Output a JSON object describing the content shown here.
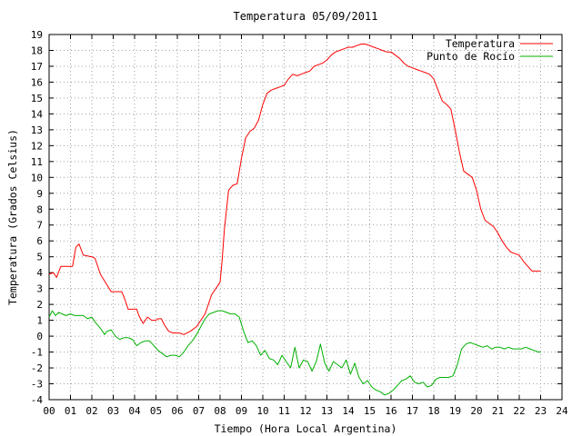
{
  "chart_data": {
    "type": "line",
    "title": "Temperatura 05/09/2011",
    "xlabel": "Tiempo (Hora Local Argentina)",
    "ylabel": "Temperatura (Grados Celsius)",
    "xlim": [
      0,
      24
    ],
    "ylim": [
      -4,
      19
    ],
    "x_ticks": [
      {
        "value": 0,
        "label": "00"
      },
      {
        "value": 1,
        "label": "01"
      },
      {
        "value": 2,
        "label": "02"
      },
      {
        "value": 3,
        "label": "03"
      },
      {
        "value": 4,
        "label": "04"
      },
      {
        "value": 5,
        "label": "05"
      },
      {
        "value": 6,
        "label": "06"
      },
      {
        "value": 7,
        "label": "07"
      },
      {
        "value": 8,
        "label": "08"
      },
      {
        "value": 9,
        "label": "09"
      },
      {
        "value": 10,
        "label": "10"
      },
      {
        "value": 11,
        "label": "11"
      },
      {
        "value": 12,
        "label": "12"
      },
      {
        "value": 13,
        "label": "13"
      },
      {
        "value": 14,
        "label": "14"
      },
      {
        "value": 15,
        "label": "15"
      },
      {
        "value": 16,
        "label": "16"
      },
      {
        "value": 17,
        "label": "17"
      },
      {
        "value": 18,
        "label": "18"
      },
      {
        "value": 19,
        "label": "19"
      },
      {
        "value": 20,
        "label": "20"
      },
      {
        "value": 21,
        "label": "21"
      },
      {
        "value": 22,
        "label": "22"
      },
      {
        "value": 23,
        "label": "23"
      },
      {
        "value": 24,
        "label": "24"
      }
    ],
    "y_ticks": [
      -4,
      -3,
      -2,
      -1,
      0,
      1,
      2,
      3,
      4,
      5,
      6,
      7,
      8,
      9,
      10,
      11,
      12,
      13,
      14,
      15,
      16,
      17,
      18,
      19
    ],
    "grid": true,
    "legend_position": "top-right",
    "series": [
      {
        "name": "Temperatura",
        "color": "#ff0000",
        "x": [
          0.0,
          0.2,
          0.35,
          0.55,
          0.9,
          1.1,
          1.25,
          1.4,
          1.6,
          2.0,
          2.15,
          2.4,
          2.9,
          3.05,
          3.4,
          3.55,
          3.7,
          4.0,
          4.1,
          4.2,
          4.4,
          4.6,
          4.8,
          5.0,
          5.1,
          5.25,
          5.4,
          5.6,
          5.8,
          6.0,
          6.1,
          6.3,
          6.6,
          6.9,
          7.1,
          7.3,
          7.5,
          7.6,
          7.8,
          8.0,
          8.1,
          8.2,
          8.4,
          8.6,
          8.8,
          9.0,
          9.2,
          9.4,
          9.6,
          9.8,
          10.0,
          10.2,
          10.4,
          10.6,
          10.8,
          11.0,
          11.2,
          11.4,
          11.6,
          11.8,
          12.0,
          12.2,
          12.4,
          12.6,
          12.8,
          13.0,
          13.2,
          13.4,
          13.6,
          13.8,
          14.0,
          14.2,
          14.4,
          14.6,
          14.8,
          15.0,
          15.2,
          15.4,
          15.6,
          15.8,
          16.0,
          16.2,
          16.4,
          16.6,
          16.8,
          17.0,
          17.2,
          17.4,
          17.6,
          17.8,
          18.0,
          18.2,
          18.4,
          18.6,
          18.8,
          19.0,
          19.2,
          19.4,
          19.6,
          19.8,
          20.0,
          20.2,
          20.4,
          20.6,
          20.8,
          21.0,
          21.2,
          21.4,
          21.6,
          21.8,
          22.0,
          22.2,
          22.4,
          22.6,
          22.8,
          23.0
        ],
        "y": [
          3.9,
          4.0,
          3.7,
          4.4,
          4.4,
          4.4,
          5.6,
          5.8,
          5.1,
          5.0,
          4.9,
          3.9,
          2.8,
          2.8,
          2.8,
          2.3,
          1.7,
          1.7,
          1.7,
          1.3,
          0.8,
          1.2,
          1.0,
          1.0,
          1.1,
          1.1,
          0.7,
          0.3,
          0.2,
          0.2,
          0.2,
          0.1,
          0.3,
          0.6,
          1.0,
          1.4,
          2.2,
          2.6,
          3.0,
          3.4,
          4.8,
          6.7,
          9.2,
          9.5,
          9.6,
          11.2,
          12.5,
          12.9,
          13.1,
          13.6,
          14.6,
          15.3,
          15.5,
          15.6,
          15.7,
          15.8,
          16.2,
          16.5,
          16.4,
          16.5,
          16.6,
          16.7,
          17.0,
          17.1,
          17.2,
          17.4,
          17.7,
          17.9,
          18.0,
          18.1,
          18.2,
          18.2,
          18.3,
          18.4,
          18.4,
          18.3,
          18.2,
          18.1,
          18.0,
          17.9,
          17.9,
          17.7,
          17.5,
          17.2,
          17.0,
          16.9,
          16.8,
          16.7,
          16.6,
          16.5,
          16.2,
          15.5,
          14.8,
          14.6,
          14.3,
          13.0,
          11.6,
          10.4,
          10.2,
          10.0,
          9.2,
          8.0,
          7.3,
          7.1,
          6.9,
          6.5,
          6.0,
          5.6,
          5.3,
          5.2,
          5.1,
          4.7,
          4.4,
          4.1,
          4.1,
          4.1
        ]
      },
      {
        "name": "Punto de Rocío",
        "color": "#00b000",
        "x": [
          0.0,
          0.15,
          0.3,
          0.45,
          0.6,
          0.8,
          1.0,
          1.2,
          1.4,
          1.6,
          1.8,
          2.0,
          2.2,
          2.4,
          2.6,
          2.7,
          2.9,
          3.1,
          3.3,
          3.5,
          3.7,
          3.9,
          4.1,
          4.3,
          4.5,
          4.7,
          4.9,
          5.1,
          5.3,
          5.5,
          5.7,
          5.9,
          6.1,
          6.3,
          6.5,
          6.7,
          6.9,
          7.1,
          7.3,
          7.5,
          7.7,
          7.9,
          8.1,
          8.3,
          8.5,
          8.7,
          8.9,
          9.1,
          9.3,
          9.5,
          9.7,
          9.9,
          10.1,
          10.3,
          10.5,
          10.7,
          10.9,
          11.1,
          11.3,
          11.5,
          11.7,
          11.9,
          12.1,
          12.3,
          12.5,
          12.7,
          12.9,
          13.1,
          13.3,
          13.5,
          13.7,
          13.9,
          14.1,
          14.3,
          14.5,
          14.7,
          14.9,
          15.1,
          15.3,
          15.5,
          15.7,
          15.9,
          16.1,
          16.3,
          16.5,
          16.7,
          16.9,
          17.1,
          17.3,
          17.5,
          17.7,
          17.9,
          18.1,
          18.3,
          18.5,
          18.7,
          18.9,
          19.1,
          19.3,
          19.5,
          19.7,
          19.9,
          20.1,
          20.3,
          20.5,
          20.7,
          20.9,
          21.1,
          21.3,
          21.5,
          21.7,
          21.9,
          22.1,
          22.3,
          22.5,
          22.7,
          22.9,
          23.0
        ],
        "y": [
          1.2,
          1.6,
          1.3,
          1.5,
          1.4,
          1.3,
          1.4,
          1.3,
          1.3,
          1.3,
          1.1,
          1.2,
          0.8,
          0.5,
          0.1,
          0.3,
          0.4,
          0.0,
          -0.2,
          -0.1,
          -0.1,
          -0.2,
          -0.6,
          -0.4,
          -0.3,
          -0.3,
          -0.6,
          -0.9,
          -1.1,
          -1.3,
          -1.2,
          -1.2,
          -1.3,
          -1.0,
          -0.6,
          -0.3,
          0.1,
          0.6,
          1.1,
          1.4,
          1.5,
          1.6,
          1.6,
          1.5,
          1.4,
          1.4,
          1.2,
          0.3,
          -0.4,
          -0.3,
          -0.6,
          -1.2,
          -0.9,
          -1.4,
          -1.5,
          -1.8,
          -1.2,
          -1.6,
          -2.0,
          -0.7,
          -2.0,
          -1.5,
          -1.6,
          -2.2,
          -1.6,
          -0.5,
          -1.7,
          -2.2,
          -1.6,
          -1.8,
          -2.0,
          -1.5,
          -2.4,
          -1.7,
          -2.6,
          -3.0,
          -2.8,
          -3.2,
          -3.4,
          -3.5,
          -3.7,
          -3.6,
          -3.4,
          -3.1,
          -2.8,
          -2.7,
          -2.5,
          -2.9,
          -3.0,
          -2.9,
          -3.2,
          -3.1,
          -2.7,
          -2.6,
          -2.6,
          -2.6,
          -2.5,
          -1.8,
          -0.8,
          -0.5,
          -0.4,
          -0.5,
          -0.6,
          -0.7,
          -0.6,
          -0.8,
          -0.7,
          -0.7,
          -0.8,
          -0.7,
          -0.8,
          -0.8,
          -0.8,
          -0.7,
          -0.8,
          -0.9,
          -1.0,
          -1.0
        ]
      }
    ]
  }
}
